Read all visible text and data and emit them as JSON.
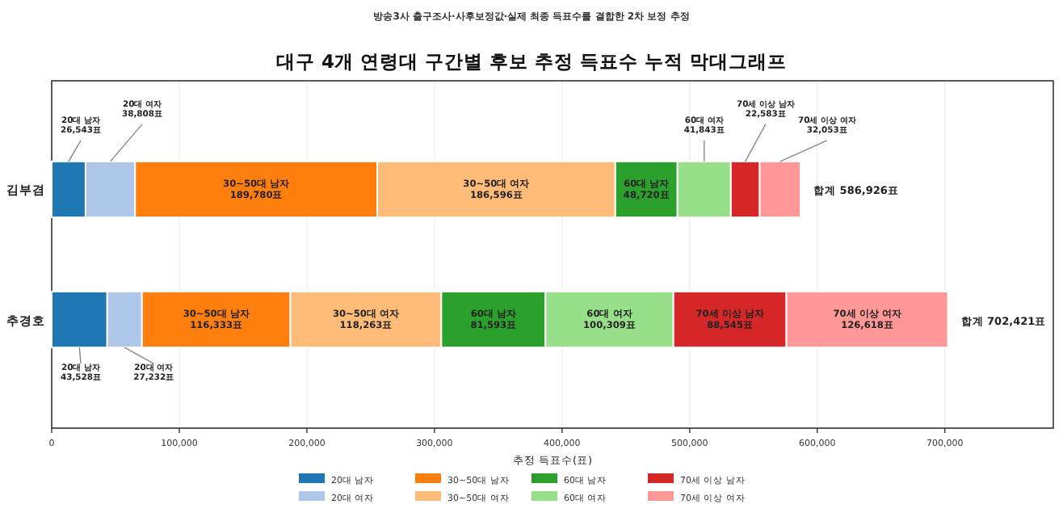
{
  "chart_data": {
    "type": "bar",
    "orientation": "horizontal",
    "stacked": true,
    "subtitle": "방송3사 출구조사·사후보정값·실제 최종 득표수를 결합한 2차 보정 추정",
    "title": "대구 4개 연령대 구간별 후보 추정 득표수 누적 막대그래프",
    "xlabel": "추정 득표수(표)",
    "categories": [
      "김부겸",
      "추경호"
    ],
    "series": [
      {
        "name": "20대 남자",
        "color": "#1f77b4",
        "values": [
          26543,
          43528
        ],
        "value_labels": [
          "26,543표",
          "43,528표"
        ]
      },
      {
        "name": "20대 여자",
        "color": "#aec7e8",
        "values": [
          38808,
          27232
        ],
        "value_labels": [
          "38,808표",
          "27,232표"
        ]
      },
      {
        "name": "30~50대 남자",
        "color": "#ff7f0e",
        "values": [
          189780,
          116333
        ],
        "value_labels": [
          "189,780표",
          "116,333표"
        ]
      },
      {
        "name": "30~50대 여자",
        "color": "#ffbb78",
        "values": [
          186596,
          118263
        ],
        "value_labels": [
          "186,596표",
          "118,263표"
        ]
      },
      {
        "name": "60대 남자",
        "color": "#2ca02c",
        "values": [
          48720,
          81593
        ],
        "value_labels": [
          "48,720표",
          "81,593표"
        ]
      },
      {
        "name": "60대 여자",
        "color": "#98df8a",
        "values": [
          41843,
          100309
        ],
        "value_labels": [
          "41,843표",
          "100,309표"
        ]
      },
      {
        "name": "70세 이상 남자",
        "color": "#d62728",
        "values": [
          22583,
          88545
        ],
        "value_labels": [
          "22,583표",
          "88,545표"
        ]
      },
      {
        "name": "70세 이상 여자",
        "color": "#ff9896",
        "values": [
          32053,
          126618
        ],
        "value_labels": [
          "32,053표",
          "126,618표"
        ]
      }
    ],
    "totals": [
      "합계 586,926표",
      "합계 702,421표"
    ],
    "xlim": [
      0,
      785000
    ],
    "xticks": [
      0,
      {
        "value": 100000,
        "label": "100,000"
      },
      {
        "value": 200000,
        "label": "200,000"
      },
      {
        "value": 300000,
        "label": "300,000"
      },
      {
        "value": 400000,
        "label": "400,000"
      },
      {
        "value": 500000,
        "label": "500,000"
      },
      {
        "value": 600000,
        "label": "600,000"
      },
      {
        "value": 700000,
        "label": "700,000"
      }
    ],
    "grid": "x",
    "legend": "bottom"
  }
}
